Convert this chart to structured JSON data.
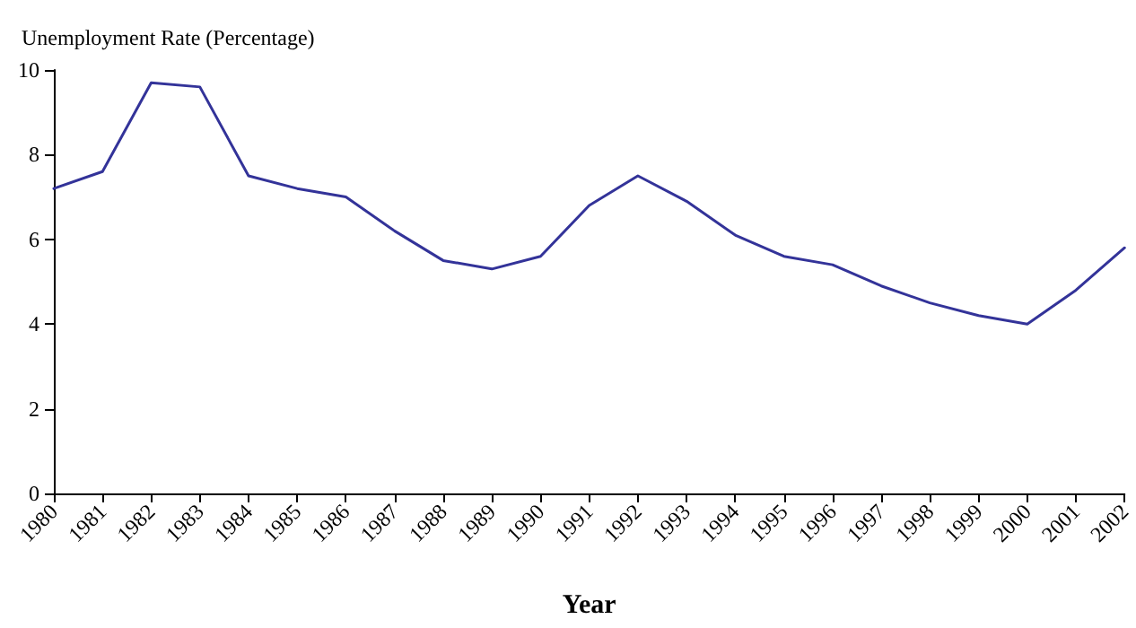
{
  "chart_data": {
    "type": "line",
    "xlabel": "Year",
    "ylabel": "Unemployment Rate (Percentage)",
    "categories": [
      "1980",
      "1981",
      "1982",
      "1983",
      "1984",
      "1985",
      "1986",
      "1987",
      "1988",
      "1989",
      "1990",
      "1991",
      "1992",
      "1993",
      "1994",
      "1995",
      "1996",
      "1997",
      "1998",
      "1999",
      "2000",
      "2001",
      "2002"
    ],
    "series": [
      {
        "color": "#333399",
        "values": [
          7.2,
          7.6,
          9.7,
          9.6,
          7.5,
          7.2,
          7.0,
          6.2,
          5.5,
          5.3,
          5.6,
          6.8,
          7.5,
          6.9,
          6.1,
          5.6,
          5.4,
          4.9,
          4.5,
          4.2,
          4.0,
          4.8,
          5.8
        ]
      }
    ],
    "ylim": [
      0,
      10
    ],
    "yticks": [
      0,
      2,
      4,
      6,
      8,
      10
    ],
    "grid": false,
    "marker": "none",
    "line_style": "solid"
  }
}
